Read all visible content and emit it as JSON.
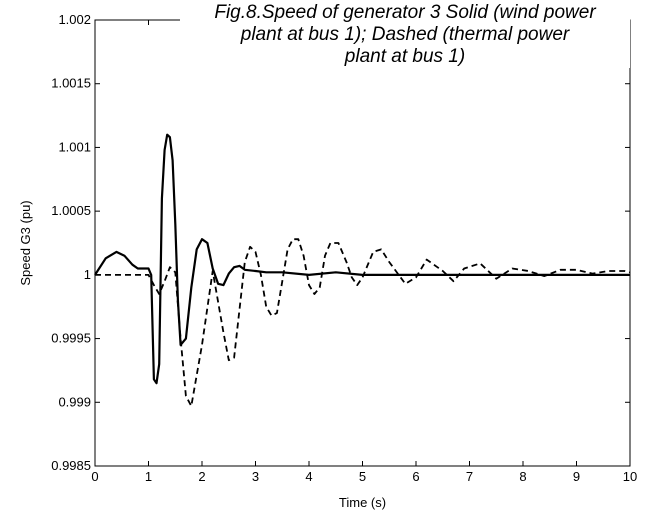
{
  "chart_data": {
    "type": "line",
    "title_lines": [
      "Fig.8.Speed of generator 3 Solid (wind power",
      "plant at bus 1); Dashed (thermal power",
      "plant at bus 1)"
    ],
    "xlabel": "Time (s)",
    "ylabel": "Speed G3 (pu)",
    "xlim": [
      0,
      10
    ],
    "ylim": [
      0.9985,
      1.002
    ],
    "x_ticks": [
      0,
      1,
      2,
      3,
      4,
      5,
      6,
      7,
      8,
      9,
      10
    ],
    "x_tick_labels": [
      "0",
      "1",
      "2",
      "3",
      "4",
      "5",
      "6",
      "7",
      "8",
      "9",
      "10"
    ],
    "y_ticks": [
      0.9985,
      0.999,
      0.9995,
      1,
      1.0005,
      1.001,
      1.0015,
      1.002
    ],
    "y_tick_labels": [
      "0.9985",
      "0.999",
      "0.9995",
      "1",
      "1.0005",
      "1.001",
      "1.0015",
      "1.002"
    ],
    "grid": false,
    "series": [
      {
        "style": "solid",
        "color": "#000000",
        "x": [
          0,
          0.2,
          0.4,
          0.55,
          0.7,
          0.8,
          1.0,
          1.05,
          1.1,
          1.15,
          1.2,
          1.25,
          1.3,
          1.35,
          1.4,
          1.45,
          1.5,
          1.55,
          1.6,
          1.7,
          1.8,
          1.9,
          2.0,
          2.1,
          2.2,
          2.3,
          2.4,
          2.5,
          2.6,
          2.7,
          2.8,
          3.0,
          3.2,
          3.5,
          4.0,
          4.5,
          5.0,
          10.0
        ],
        "y": [
          1.0,
          1.00013,
          1.00018,
          1.00015,
          1.00008,
          1.00005,
          1.00005,
          1.0,
          0.99918,
          0.99915,
          0.9993,
          1.0006,
          1.00098,
          1.0011,
          1.00108,
          1.0009,
          1.0004,
          0.9998,
          0.99945,
          0.9995,
          0.9999,
          1.0002,
          1.00028,
          1.00025,
          1.00005,
          0.99993,
          0.99992,
          1.00001,
          1.00006,
          1.00007,
          1.00004,
          1.00003,
          1.00002,
          1.00002,
          1.0,
          1.00002,
          1.0,
          1.0
        ]
      },
      {
        "style": "dashed",
        "color": "#000000",
        "x": [
          0,
          0.5,
          1.0,
          1.1,
          1.2,
          1.3,
          1.4,
          1.5,
          1.6,
          1.7,
          1.8,
          2.0,
          2.2,
          2.4,
          2.5,
          2.6,
          2.8,
          2.9,
          3.0,
          3.1,
          3.2,
          3.3,
          3.4,
          3.5,
          3.6,
          3.7,
          3.8,
          3.9,
          4.0,
          4.1,
          4.2,
          4.3,
          4.4,
          4.55,
          4.7,
          4.8,
          4.9,
          5.0,
          5.2,
          5.35,
          5.5,
          5.8,
          6.0,
          6.2,
          6.5,
          6.7,
          6.9,
          7.2,
          7.5,
          7.8,
          8.1,
          8.4,
          8.7,
          9.0,
          9.3,
          9.6,
          9.9,
          10.0
        ],
        "y": [
          1.0,
          1.0,
          1.0,
          0.99992,
          0.99985,
          0.99995,
          1.00006,
          1.00002,
          0.9995,
          0.99905,
          0.99897,
          0.99945,
          1.00003,
          0.99955,
          0.99933,
          0.99935,
          1.0001,
          1.00022,
          1.00018,
          1.0,
          0.99975,
          0.99968,
          0.9997,
          0.99995,
          1.0002,
          1.00028,
          1.00028,
          1.00015,
          0.99992,
          0.99985,
          0.9999,
          1.00015,
          1.00025,
          1.00025,
          1.0001,
          0.99998,
          0.99992,
          0.99998,
          1.00018,
          1.0002,
          1.0001,
          0.99993,
          0.99998,
          1.00012,
          1.00003,
          0.99995,
          1.00005,
          1.00009,
          0.99997,
          1.00005,
          1.00003,
          0.99999,
          1.00004,
          1.00004,
          1.00001,
          1.00003,
          1.00003,
          1.00002
        ]
      }
    ]
  }
}
